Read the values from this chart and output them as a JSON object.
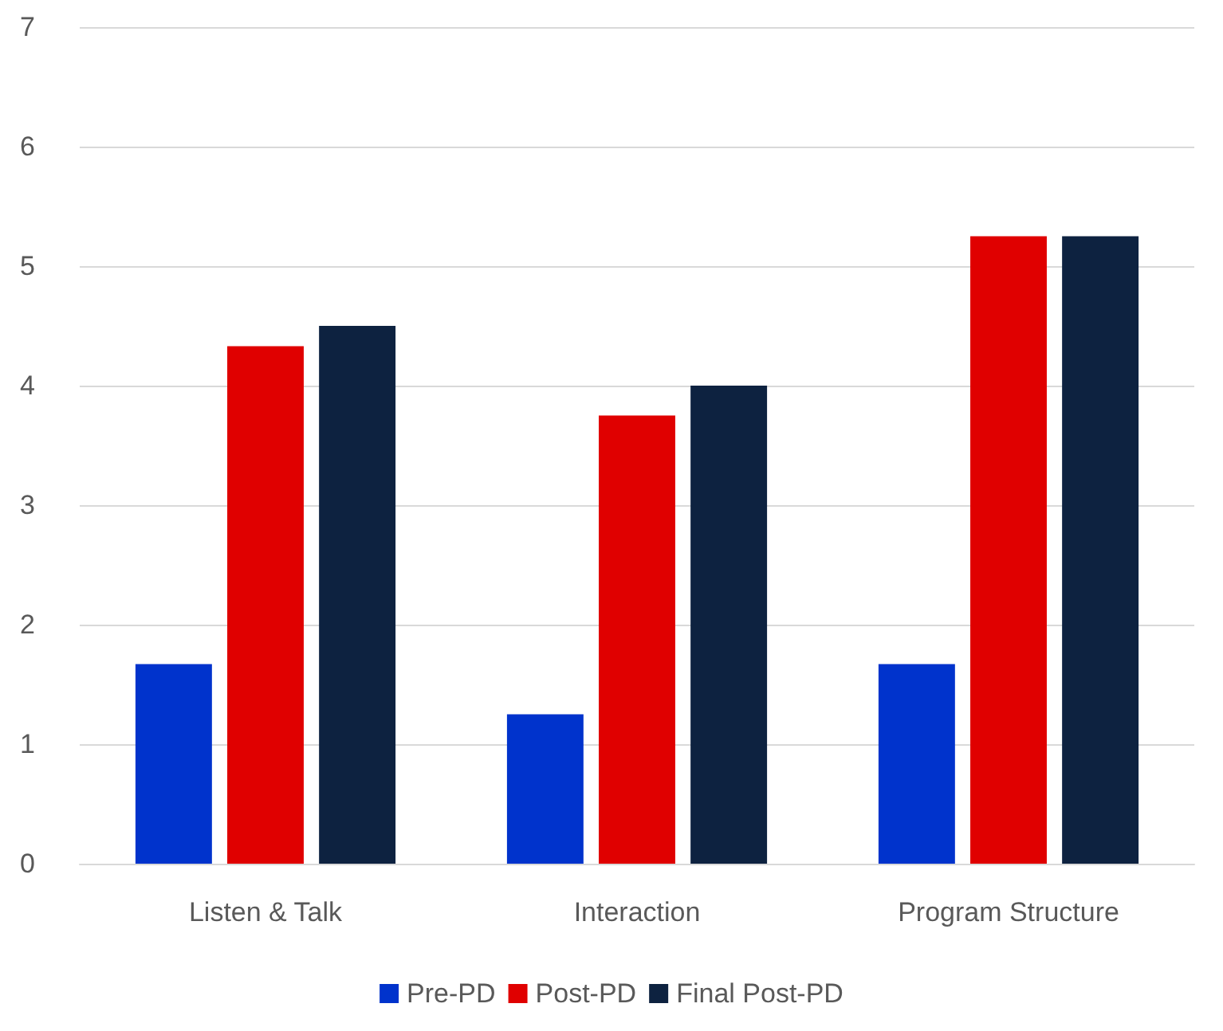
{
  "chart_data": {
    "type": "bar",
    "categories": [
      "Listen & Talk",
      "Interaction",
      "Program Structure"
    ],
    "series": [
      {
        "name": "Pre-PD",
        "color": "#0033cc",
        "values": [
          1.67,
          1.25,
          1.67
        ]
      },
      {
        "name": "Post-PD",
        "color": "#e00000",
        "values": [
          4.33,
          3.75,
          5.25
        ]
      },
      {
        "name": "Final Post-PD",
        "color": "#0d2240",
        "values": [
          4.5,
          4,
          5.25
        ]
      }
    ],
    "ylim": [
      0,
      7
    ],
    "yticks": [
      0,
      1,
      2,
      3,
      4,
      5,
      6,
      7
    ],
    "grid": "y",
    "legend": "bottom"
  }
}
